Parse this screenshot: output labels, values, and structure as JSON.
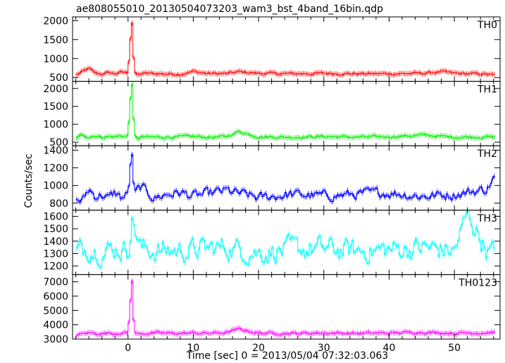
{
  "title": "ae808055010_20130504073203_wam3_bst_4band_16bin.qdp",
  "ylabel": "Counts/sec",
  "xlabel": "Time [sec] 0 = 2013/05/04 07:32:03.063",
  "chart_data": {
    "type": "line",
    "title": "ae808055010_20130504073203_wam3_bst_4band_16bin.qdp",
    "xlabel": "Time [sec] 0 = 2013/05/04 07:32:03.063",
    "ylabel": "Counts/sec",
    "xlim": [
      -8.5,
      57
    ],
    "x_ticks": [
      0,
      10,
      20,
      30,
      40,
      50
    ],
    "bin_width_sec": 0.25,
    "grid": false,
    "legend": "panel labels top-right",
    "series": [
      {
        "name": "TH0",
        "color": "#ff0000",
        "ylim": [
          400,
          2100
        ],
        "y_ticks": [
          500,
          1000,
          1500,
          2000
        ],
        "x": [
          -8,
          -7,
          -6,
          -5,
          -4,
          -3,
          -2,
          -1,
          0,
          0.3,
          0.6,
          0.8,
          1,
          1.5,
          2,
          3,
          5,
          8,
          10,
          12,
          15,
          17,
          20,
          25,
          30,
          35,
          40,
          45,
          48,
          50,
          52,
          55,
          56
        ],
        "values": [
          560,
          650,
          740,
          610,
          590,
          630,
          600,
          640,
          620,
          1380,
          2050,
          1280,
          620,
          560,
          600,
          610,
          600,
          590,
          660,
          610,
          600,
          650,
          610,
          600,
          610,
          600,
          600,
          610,
          650,
          610,
          600,
          590,
          560
        ]
      },
      {
        "name": "TH1",
        "color": "#00ee00",
        "ylim": [
          400,
          2200
        ],
        "y_ticks": [
          500,
          1000,
          1500,
          2000
        ],
        "x": [
          -8,
          -7,
          -6,
          -5,
          -4,
          -3,
          -2,
          -1,
          0,
          0.3,
          0.6,
          0.8,
          1,
          1.5,
          2,
          5,
          8,
          10,
          12,
          15,
          17,
          20,
          25,
          30,
          35,
          40,
          45,
          50,
          55,
          56
        ],
        "values": [
          620,
          700,
          650,
          680,
          640,
          660,
          650,
          680,
          660,
          1600,
          2200,
          1400,
          660,
          600,
          640,
          640,
          650,
          660,
          640,
          650,
          800,
          650,
          640,
          660,
          640,
          650,
          700,
          640,
          650,
          640
        ]
      },
      {
        "name": "TH2",
        "color": "#0000ff",
        "ylim": [
          720,
          1450
        ],
        "y_ticks": [
          800,
          1000,
          1200,
          1400
        ],
        "x": [
          -8,
          -7,
          -6,
          -5,
          -4,
          -3,
          -2,
          -1,
          0,
          0.3,
          0.6,
          0.8,
          1,
          2,
          4,
          6,
          8,
          10,
          12,
          15,
          20,
          25,
          30,
          35,
          40,
          45,
          50,
          55,
          56
        ],
        "values": [
          850,
          820,
          960,
          880,
          900,
          850,
          920,
          860,
          900,
          1150,
          1400,
          1050,
          900,
          980,
          860,
          900,
          920,
          880,
          900,
          940,
          860,
          900,
          880,
          900,
          920,
          880,
          900,
          960,
          1080
        ]
      },
      {
        "name": "TH3",
        "color": "#00ffff",
        "ylim": [
          1130,
          1650
        ],
        "y_ticks": [
          1200,
          1300,
          1400,
          1500,
          1600
        ],
        "x": [
          -8,
          -6,
          -4,
          -2,
          0,
          0.6,
          2,
          5,
          10,
          15,
          20,
          25,
          30,
          35,
          40,
          45,
          50,
          52,
          55,
          56
        ],
        "values": [
          1320,
          1350,
          1320,
          1340,
          1330,
          1580,
          1340,
          1320,
          1330,
          1350,
          1310,
          1330,
          1340,
          1320,
          1330,
          1350,
          1320,
          1620,
          1330,
          1300
        ]
      },
      {
        "name": "TH0123",
        "color": "#ff00ff",
        "ylim": [
          3000,
          7500
        ],
        "y_ticks": [
          3000,
          4000,
          5000,
          6000,
          7000
        ],
        "x": [
          -8,
          -7,
          -6,
          -5,
          -4,
          -3,
          -2,
          -1,
          0,
          0.3,
          0.6,
          0.8,
          1,
          1.5,
          2,
          5,
          8,
          10,
          12,
          15,
          17,
          20,
          25,
          30,
          35,
          40,
          45,
          50,
          55,
          56
        ],
        "values": [
          3300,
          3350,
          3450,
          3400,
          3380,
          3420,
          3400,
          3450,
          3420,
          5200,
          7400,
          4800,
          3450,
          3350,
          3400,
          3420,
          3400,
          3430,
          3400,
          3450,
          3700,
          3420,
          3400,
          3430,
          3400,
          3420,
          3480,
          3420,
          3450,
          3500
        ]
      }
    ]
  }
}
